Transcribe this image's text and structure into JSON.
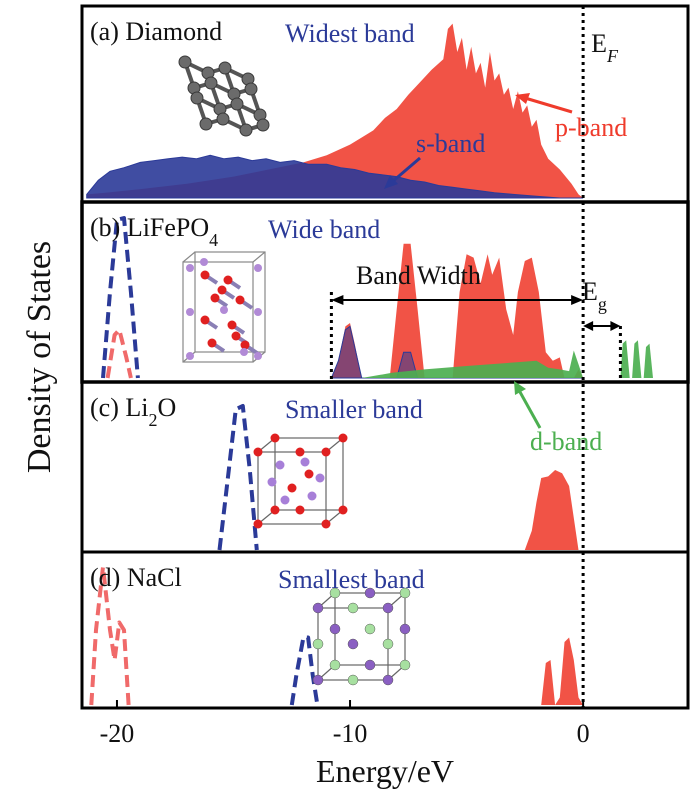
{
  "chart_data": {
    "type": "area",
    "xlabel": "Energy/eV",
    "ylabel": "Density of States",
    "xlim": [
      -21.5,
      4.5
    ],
    "xticks": [
      {
        "value": -20,
        "label": "-20"
      },
      {
        "value": -10,
        "label": "-10"
      },
      {
        "value": 0,
        "label": "0"
      }
    ],
    "fermi_label": "E",
    "fermi_sub": "F",
    "colors": {
      "p": "#ef3b2c",
      "s": "#2b3a98",
      "d": "#4caf50",
      "ion": "#f06a6a",
      "frame_d": "#c0392b"
    },
    "panels": [
      {
        "id": "a",
        "label_prefix": "(a) Diamond",
        "label_sub": "",
        "label_suffix": "",
        "band_label": "Widest band",
        "annotations": [
          {
            "text": "p-band",
            "color": "#ef3b2c"
          },
          {
            "text": "s-band",
            "color": "#2b3a98"
          }
        ],
        "series": [
          {
            "name": "p-band",
            "role": "p",
            "points": [
              [
                -21.3,
                0.02
              ],
              [
                -20.5,
                0.03
              ],
              [
                -19,
                0.05
              ],
              [
                -17,
                0.08
              ],
              [
                -15,
                0.12
              ],
              [
                -13.5,
                0.16
              ],
              [
                -12,
                0.2
              ],
              [
                -11,
                0.24
              ],
              [
                -10,
                0.3
              ],
              [
                -9.5,
                0.34
              ],
              [
                -9,
                0.38
              ],
              [
                -8.5,
                0.45
              ],
              [
                -8,
                0.5
              ],
              [
                -7.5,
                0.58
              ],
              [
                -7,
                0.65
              ],
              [
                -6.5,
                0.72
              ],
              [
                -6,
                0.78
              ],
              [
                -5.8,
                0.95
              ],
              [
                -5.6,
                0.98
              ],
              [
                -5.4,
                0.82
              ],
              [
                -5.2,
                0.9
              ],
              [
                -5,
                0.72
              ],
              [
                -4.8,
                0.85
              ],
              [
                -4.6,
                0.7
              ],
              [
                -4.4,
                0.76
              ],
              [
                -4.2,
                0.62
              ],
              [
                -4,
                0.82
              ],
              [
                -3.8,
                0.66
              ],
              [
                -3.6,
                0.7
              ],
              [
                -3.4,
                0.58
              ],
              [
                -3.2,
                0.62
              ],
              [
                -3,
                0.5
              ],
              [
                -2.8,
                0.6
              ],
              [
                -2.6,
                0.48
              ],
              [
                -2.4,
                0.52
              ],
              [
                -2.2,
                0.4
              ],
              [
                -2,
                0.44
              ],
              [
                -1.8,
                0.3
              ],
              [
                -1.5,
                0.22
              ],
              [
                -1,
                0.16
              ],
              [
                -0.5,
                0.08
              ],
              [
                -0.2,
                0.02
              ],
              [
                0,
                0
              ]
            ]
          },
          {
            "name": "s-band",
            "role": "s",
            "points": [
              [
                -21.3,
                0.02
              ],
              [
                -20.8,
                0.1
              ],
              [
                -20.3,
                0.15
              ],
              [
                -19.7,
                0.17
              ],
              [
                -19,
                0.2
              ],
              [
                -18.4,
                0.21
              ],
              [
                -17.8,
                0.22
              ],
              [
                -17.2,
                0.23
              ],
              [
                -16.6,
                0.22
              ],
              [
                -16,
                0.24
              ],
              [
                -15.4,
                0.22
              ],
              [
                -14.8,
                0.23
              ],
              [
                -14.2,
                0.21
              ],
              [
                -13.6,
                0.22
              ],
              [
                -13,
                0.2
              ],
              [
                -12.4,
                0.21
              ],
              [
                -11.8,
                0.19
              ],
              [
                -11,
                0.19
              ],
              [
                -10.4,
                0.17
              ],
              [
                -9.8,
                0.16
              ],
              [
                -9.2,
                0.14
              ],
              [
                -8.6,
                0.13
              ],
              [
                -8,
                0.12
              ],
              [
                -7.4,
                0.1
              ],
              [
                -6.8,
                0.09
              ],
              [
                -6.2,
                0.07
              ],
              [
                -5.6,
                0.06
              ],
              [
                -5,
                0.05
              ],
              [
                -4.4,
                0.04
              ],
              [
                -3.8,
                0.03
              ],
              [
                -3,
                0.02
              ],
              [
                -2,
                0.01
              ],
              [
                -1,
                0
              ],
              [
                0,
                0
              ]
            ]
          }
        ]
      },
      {
        "id": "b",
        "label_prefix": "(b) LiFePO",
        "label_sub": "4",
        "label_suffix": "",
        "band_label": "Wide band",
        "annotations": [
          {
            "text": "Band Width",
            "color": "#000000"
          },
          {
            "text": "E",
            "sub": "g",
            "color": "#000000"
          },
          {
            "text": "d-band",
            "color": "#4caf50"
          }
        ],
        "series": [
          {
            "name": "p-band",
            "role": "p",
            "points": [
              [
                -10.8,
                0
              ],
              [
                -10.5,
                0.1
              ],
              [
                -10.2,
                0.3
              ],
              [
                -10,
                0.32
              ],
              [
                -9.8,
                0.2
              ],
              [
                -9.5,
                0
              ],
              [
                -8.3,
                0
              ],
              [
                -8,
                0.4
              ],
              [
                -7.7,
                0.78
              ],
              [
                -7.4,
                0.78
              ],
              [
                -7.1,
                0.4
              ],
              [
                -6.8,
                0
              ],
              [
                -5.6,
                0
              ],
              [
                -5.3,
                0.5
              ],
              [
                -5,
                0.72
              ],
              [
                -4.7,
                0.7
              ],
              [
                -4.4,
                0.55
              ],
              [
                -4.1,
                0.72
              ],
              [
                -3.9,
                0.6
              ],
              [
                -3.6,
                0.7
              ],
              [
                -3.3,
                0.4
              ],
              [
                -3,
                0.25
              ],
              [
                -2.8,
                0.5
              ],
              [
                -2.5,
                0.68
              ],
              [
                -2.2,
                0.7
              ],
              [
                -1.9,
                0.5
              ],
              [
                -1.6,
                0.15
              ],
              [
                -1.3,
                0.1
              ],
              [
                -1,
                0.12
              ],
              [
                -0.8,
                0
              ],
              [
                -0.4,
                0
              ],
              [
                -0.2,
                0.05
              ],
              [
                0,
                0
              ]
            ]
          },
          {
            "name": "s-band",
            "role": "s",
            "points": [
              [
                -10.8,
                0
              ],
              [
                -10.5,
                0.1
              ],
              [
                -10.2,
                0.28
              ],
              [
                -10,
                0.3
              ],
              [
                -9.8,
                0.18
              ],
              [
                -9.5,
                0
              ],
              [
                -8,
                0
              ],
              [
                -7.7,
                0.15
              ],
              [
                -7.4,
                0.15
              ],
              [
                -7.1,
                0
              ],
              [
                0,
                0
              ]
            ]
          },
          {
            "name": "d-band",
            "role": "d",
            "points": [
              [
                -9.5,
                0
              ],
              [
                -8.2,
                0.03
              ],
              [
                -6.8,
                0.05
              ],
              [
                -5,
                0.07
              ],
              [
                -3,
                0.09
              ],
              [
                -2,
                0.1
              ],
              [
                -1.5,
                0.06
              ],
              [
                -1,
                0.05
              ],
              [
                -0.6,
                0.04
              ],
              [
                -0.4,
                0.16
              ],
              [
                -0.2,
                0.08
              ],
              [
                0,
                0
              ]
            ]
          },
          {
            "name": "d-band-cb",
            "role": "d",
            "points": [
              [
                1.6,
                0
              ],
              [
                1.7,
                0.2
              ],
              [
                1.85,
                0.22
              ],
              [
                2,
                0
              ],
              [
                2.1,
                0
              ],
              [
                2.2,
                0.2
              ],
              [
                2.35,
                0.22
              ],
              [
                2.5,
                0
              ],
              [
                2.6,
                0
              ],
              [
                2.7,
                0.18
              ],
              [
                2.85,
                0.2
              ],
              [
                3,
                0
              ]
            ]
          },
          {
            "name": "ion",
            "role": "ion_dash",
            "points": [
              [
                -20.6,
                0
              ],
              [
                -20.3,
                0.5
              ],
              [
                -20,
                0.92
              ],
              [
                -19.7,
                0.93
              ],
              [
                -19.4,
                0.5
              ],
              [
                -19.1,
                0
              ]
            ]
          },
          {
            "name": "ion2",
            "role": "ion_dash_red",
            "points": [
              [
                -20.4,
                0
              ],
              [
                -20.1,
                0.25
              ],
              [
                -19.9,
                0.28
              ],
              [
                -19.6,
                0.12
              ],
              [
                -19.4,
                0
              ]
            ]
          }
        ]
      },
      {
        "id": "c",
        "label_prefix": "(c) Li",
        "label_sub": "2",
        "label_suffix": "O",
        "band_label": "Smaller band",
        "annotations": [],
        "series": [
          {
            "name": "p-band",
            "role": "p",
            "points": [
              [
                -2.5,
                0
              ],
              [
                -2.2,
                0.12
              ],
              [
                -2,
                0.3
              ],
              [
                -1.8,
                0.45
              ],
              [
                -1.5,
                0.46
              ],
              [
                -1.2,
                0.5
              ],
              [
                -0.9,
                0.48
              ],
              [
                -0.6,
                0.4
              ],
              [
                -0.4,
                0.2
              ],
              [
                -0.2,
                0
              ],
              [
                0,
                0
              ]
            ]
          },
          {
            "name": "ion",
            "role": "ion_dash",
            "points": [
              [
                -15.6,
                0
              ],
              [
                -15.2,
                0.5
              ],
              [
                -14.9,
                0.88
              ],
              [
                -14.6,
                0.9
              ],
              [
                -14.3,
                0.5
              ],
              [
                -14,
                0
              ]
            ]
          }
        ]
      },
      {
        "id": "d",
        "label_prefix": "(d) NaCl",
        "label_sub": "",
        "label_suffix": "",
        "band_label": "Smallest band",
        "annotations": [],
        "series": [
          {
            "name": "p-band",
            "role": "p",
            "points": [
              [
                -1.8,
                0
              ],
              [
                -1.6,
                0.28
              ],
              [
                -1.4,
                0.3
              ],
              [
                -1.2,
                0
              ],
              [
                -1,
                0.05
              ],
              [
                -0.8,
                0.42
              ],
              [
                -0.6,
                0.45
              ],
              [
                -0.4,
                0.3
              ],
              [
                -0.2,
                0.05
              ],
              [
                0,
                0
              ]
            ]
          },
          {
            "name": "ion",
            "role": "ion_dash",
            "points": [
              [
                -12.5,
                0
              ],
              [
                -12.3,
                0.2
              ],
              [
                -12,
                0.45
              ],
              [
                -11.8,
                0.45
              ],
              [
                -11.6,
                0.2
              ],
              [
                -11.4,
                0
              ]
            ]
          },
          {
            "name": "ion2",
            "role": "ion_dash_red",
            "points": [
              [
                -21.1,
                0
              ],
              [
                -20.9,
                0.5
              ],
              [
                -20.6,
                0.92
              ],
              [
                -20.3,
                0.5
              ],
              [
                -20.1,
                0.3
              ],
              [
                -19.9,
                0.55
              ],
              [
                -19.7,
                0.5
              ],
              [
                -19.5,
                0
              ]
            ]
          }
        ]
      }
    ]
  }
}
